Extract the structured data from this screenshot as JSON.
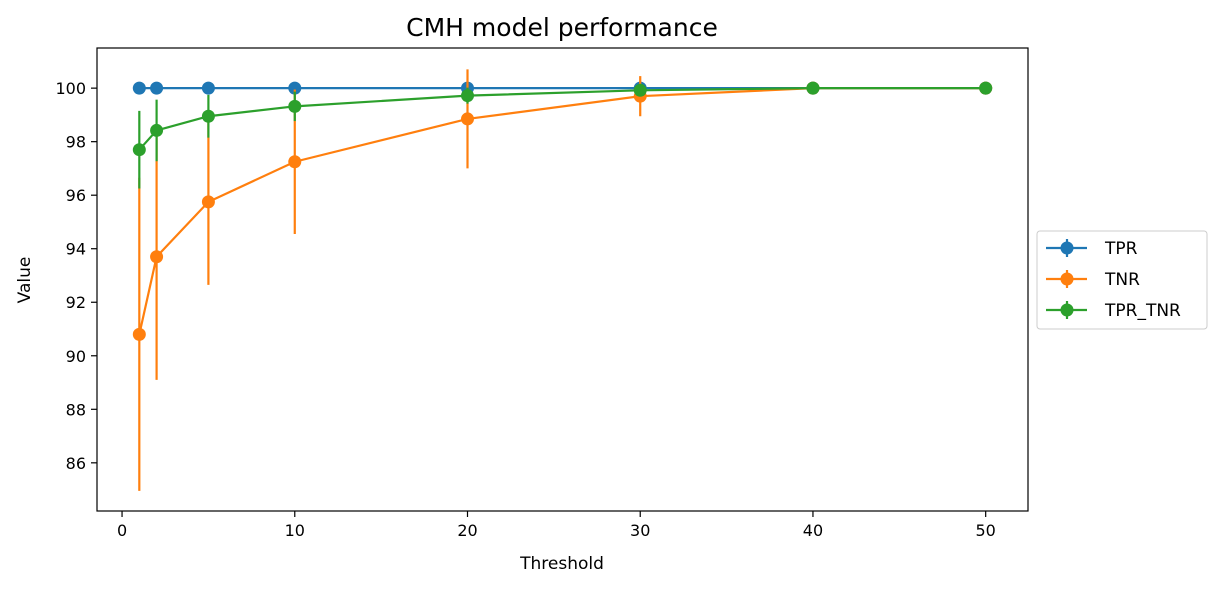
{
  "chart_data": {
    "type": "line",
    "title": "CMH model performance",
    "xlabel": "Threshold",
    "ylabel": "Value",
    "x": [
      1,
      2,
      5,
      10,
      20,
      30,
      40,
      50
    ],
    "xlim": [
      -1.45,
      52.45
    ],
    "ylim": [
      84.2,
      101.5
    ],
    "xticks": [
      0,
      10,
      20,
      30,
      40,
      50
    ],
    "yticks": [
      86,
      88,
      90,
      92,
      94,
      96,
      98,
      100
    ],
    "grid": false,
    "legend_position": "center-right outside",
    "series": [
      {
        "name": "TPR",
        "color": "#1f77b4",
        "values": [
          100,
          100,
          100,
          100,
          100,
          100,
          100,
          100
        ],
        "errors": [
          0,
          0,
          0,
          0,
          0,
          0,
          0,
          0
        ]
      },
      {
        "name": "TNR",
        "color": "#ff7f0e",
        "values": [
          90.8,
          93.7,
          95.75,
          97.25,
          98.85,
          99.7,
          100,
          100
        ],
        "errors": [
          5.85,
          4.6,
          3.1,
          2.7,
          1.85,
          0.75,
          0,
          0
        ]
      },
      {
        "name": "TPR_TNR",
        "color": "#2ca02c",
        "values": [
          97.7,
          98.42,
          98.95,
          99.32,
          99.72,
          99.92,
          100,
          100
        ],
        "errors": [
          1.45,
          1.15,
          0.8,
          0.55,
          0.3,
          0.1,
          0,
          0
        ]
      }
    ]
  }
}
